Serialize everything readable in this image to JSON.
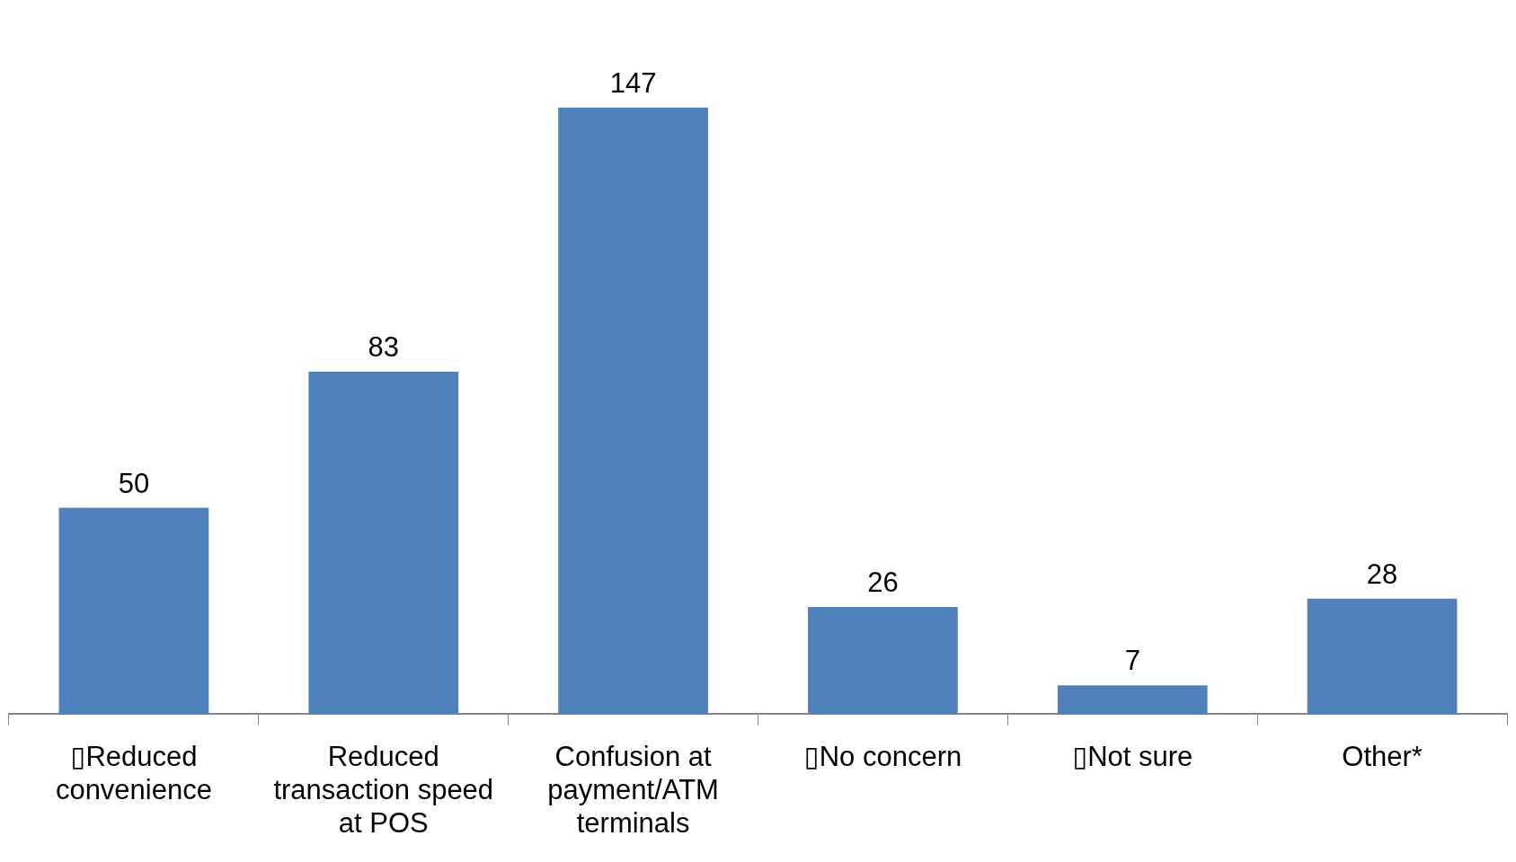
{
  "chart_data": {
    "type": "bar",
    "categories": [
      "▯Reduced convenience",
      "Reduced transaction speed at POS",
      "Confusion at payment/ATM terminals",
      "▯No concern",
      "▯Not sure",
      "Other*"
    ],
    "values": [
      50,
      83,
      147,
      26,
      7,
      28
    ],
    "color": "#4f81bd",
    "data_labels": true,
    "grid": false,
    "legend": false
  }
}
